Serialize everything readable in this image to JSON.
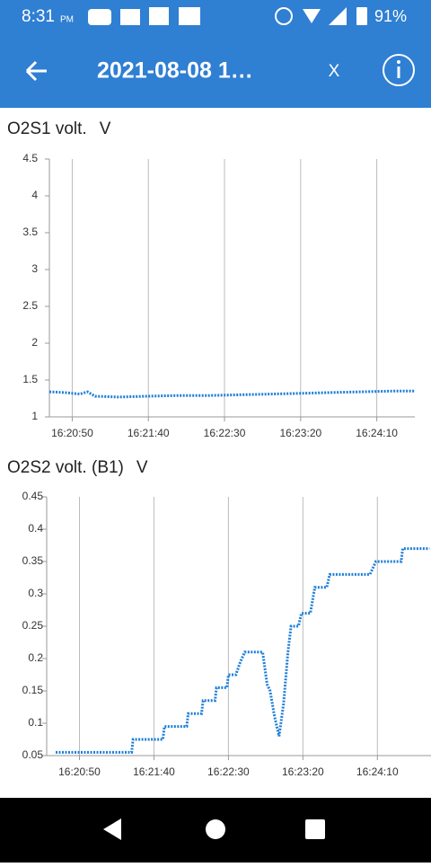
{
  "status_bar": {
    "time": "8:31",
    "ampm": "PM",
    "battery": "91%"
  },
  "app_bar": {
    "title": "2021-08-08 1…",
    "close": "X"
  },
  "chart_data": [
    {
      "type": "line",
      "title": "O2S1 volt.",
      "unit": "V",
      "xlim": [
        "16:20:35",
        "16:24:35"
      ],
      "xticks": [
        "16:20:50",
        "16:21:40",
        "16:22:30",
        "16:23:20",
        "16:24:10"
      ],
      "ylim": [
        1,
        4.5
      ],
      "yticks": [
        1,
        1.5,
        2,
        2.5,
        3,
        3.5,
        4,
        4.5
      ],
      "grid": true,
      "x": [
        "16:20:35",
        "16:20:45",
        "16:20:55",
        "16:21:00",
        "16:21:05",
        "16:21:20",
        "16:21:40",
        "16:22:00",
        "16:22:20",
        "16:22:40",
        "16:23:00",
        "16:23:20",
        "16:23:40",
        "16:24:00",
        "16:24:20",
        "16:24:35"
      ],
      "series": [
        {
          "color": "#1e7fd8",
          "values": [
            1.34,
            1.33,
            1.31,
            1.34,
            1.28,
            1.27,
            1.28,
            1.29,
            1.29,
            1.3,
            1.31,
            1.32,
            1.33,
            1.34,
            1.35,
            1.35
          ]
        }
      ]
    },
    {
      "type": "line",
      "title": "O2S2 volt. (B1)",
      "unit": "V",
      "xlim": [
        "16:20:28",
        "16:24:46"
      ],
      "xticks": [
        "16:20:50",
        "16:21:40",
        "16:22:30",
        "16:23:20",
        "16:24:10"
      ],
      "ylim": [
        0.05,
        0.45
      ],
      "yticks": [
        0.05,
        0.1,
        0.15,
        0.2,
        0.25,
        0.3,
        0.35,
        0.4,
        0.45
      ],
      "grid": true,
      "x": [
        "16:20:34",
        "16:21:25",
        "16:21:26",
        "16:21:46",
        "16:21:47",
        "16:22:02",
        "16:22:03",
        "16:22:12",
        "16:22:13",
        "16:22:21",
        "16:22:22",
        "16:22:29",
        "16:22:30",
        "16:22:35",
        "16:22:38",
        "16:22:41",
        "16:22:53",
        "16:22:56",
        "16:22:58",
        "16:23:01",
        "16:23:04",
        "16:23:07",
        "16:23:10",
        "16:23:12",
        "16:23:17",
        "16:23:19",
        "16:23:25",
        "16:23:28",
        "16:23:36",
        "16:23:38",
        "16:24:05",
        "16:24:09",
        "16:24:26",
        "16:24:27",
        "16:24:45"
      ],
      "series": [
        {
          "color": "#1e7fd8",
          "values": [
            0.055,
            0.055,
            0.075,
            0.075,
            0.095,
            0.095,
            0.115,
            0.115,
            0.135,
            0.135,
            0.155,
            0.155,
            0.175,
            0.175,
            0.195,
            0.21,
            0.21,
            0.16,
            0.15,
            0.11,
            0.08,
            0.13,
            0.21,
            0.25,
            0.25,
            0.27,
            0.27,
            0.31,
            0.31,
            0.33,
            0.33,
            0.35,
            0.35,
            0.37,
            0.37
          ]
        }
      ]
    }
  ]
}
